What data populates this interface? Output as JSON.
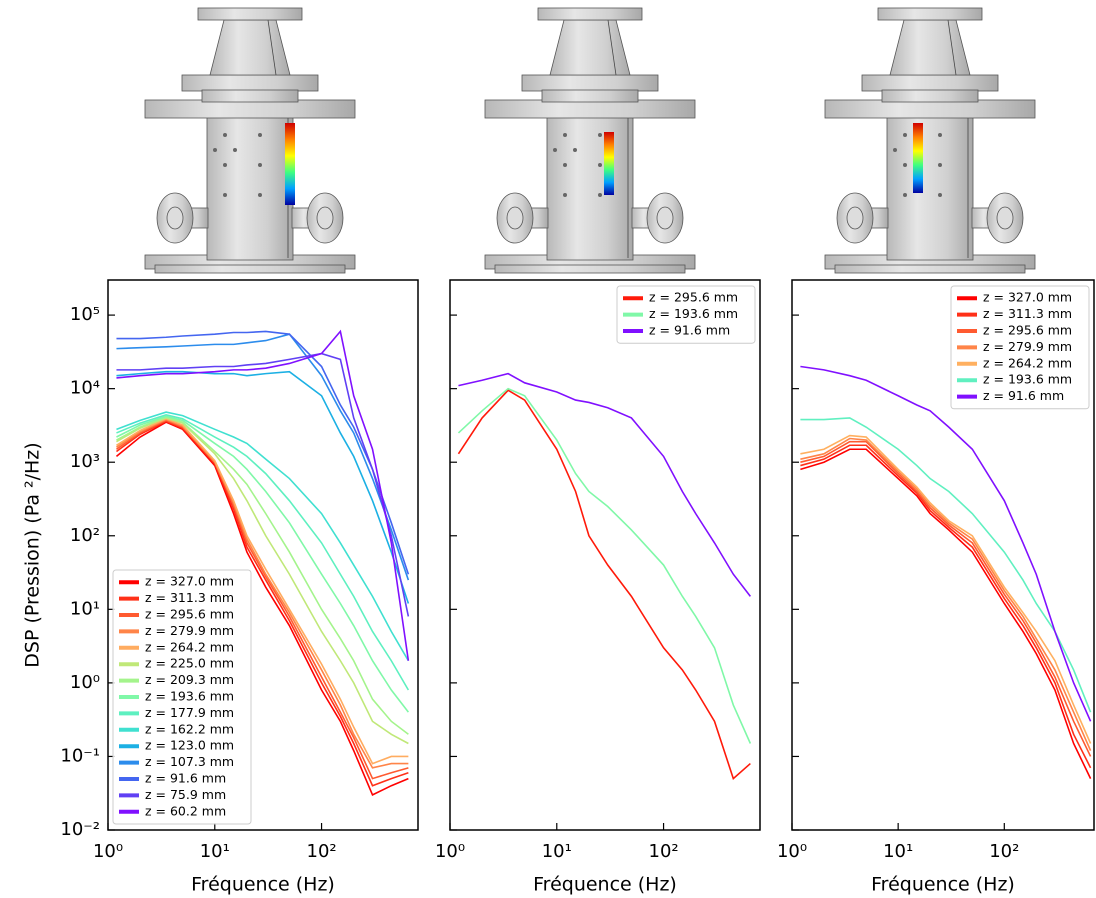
{
  "chart_data": [
    {
      "type": "line",
      "xscale": "log",
      "yscale": "log",
      "xlabel": "Fréquence (Hz)",
      "ylabel": "DSP (Pression) (Pa ²/Hz)",
      "legend": "lower left",
      "xlim": [
        1,
        800
      ],
      "ylim": [
        0.01,
        300000
      ],
      "xticks": [
        {
          "value": 1,
          "label": "10⁰"
        },
        {
          "value": 10,
          "label": "10¹"
        },
        {
          "value": 100,
          "label": "10²"
        }
      ],
      "yticks": [
        {
          "value": 0.01,
          "label": "10⁻²"
        },
        {
          "value": 0.1,
          "label": "10⁻¹"
        },
        {
          "value": 1,
          "label": "10⁰"
        },
        {
          "value": 10,
          "label": "10¹"
        },
        {
          "value": 100,
          "label": "10²"
        },
        {
          "value": 1000,
          "label": "10³"
        },
        {
          "value": 10000,
          "label": "10⁴"
        },
        {
          "value": 100000,
          "label": "10⁵"
        }
      ],
      "x": [
        1.2,
        2,
        3.5,
        5,
        10,
        15,
        20,
        30,
        50,
        100,
        150,
        200,
        300,
        450,
        650
      ],
      "series": [
        {
          "name": "z = 327.0 mm",
          "color": "#ff0000",
          "values": [
            1200,
            2200,
            3500,
            2800,
            900,
            200,
            60,
            20,
            6,
            0.8,
            0.3,
            0.12,
            0.03,
            0.04,
            0.05
          ]
        },
        {
          "name": "z = 311.3 mm",
          "color": "#ff3018",
          "values": [
            1400,
            2400,
            3600,
            2900,
            950,
            230,
            70,
            25,
            7,
            1,
            0.35,
            0.15,
            0.04,
            0.05,
            0.06
          ]
        },
        {
          "name": "z = 295.6 mm",
          "color": "#ff5a30",
          "values": [
            1500,
            2500,
            3700,
            3000,
            1000,
            260,
            80,
            28,
            8,
            1.2,
            0.4,
            0.18,
            0.05,
            0.06,
            0.07
          ]
        },
        {
          "name": "z = 279.9 mm",
          "color": "#ff8448",
          "values": [
            1600,
            2600,
            3800,
            3100,
            1000,
            280,
            90,
            30,
            9,
            1.5,
            0.5,
            0.2,
            0.07,
            0.08,
            0.08
          ]
        },
        {
          "name": "z = 264.2 mm",
          "color": "#ffac60",
          "values": [
            1700,
            2700,
            3900,
            3200,
            1050,
            300,
            100,
            35,
            10,
            1.8,
            0.6,
            0.25,
            0.08,
            0.1,
            0.1
          ]
        },
        {
          "name": "z = 225.0 mm",
          "color": "#c0e878",
          "values": [
            1900,
            2900,
            4000,
            3400,
            1300,
            600,
            300,
            100,
            30,
            5,
            2,
            1,
            0.3,
            0.2,
            0.15
          ]
        },
        {
          "name": "z = 209.3 mm",
          "color": "#a4f48c",
          "values": [
            2000,
            3000,
            4100,
            3500,
            1400,
            800,
            500,
            200,
            60,
            10,
            4,
            2,
            0.6,
            0.3,
            0.2
          ]
        },
        {
          "name": "z = 193.6 mm",
          "color": "#80f8a8",
          "values": [
            2200,
            3200,
            4200,
            3700,
            1800,
            1200,
            800,
            400,
            150,
            30,
            12,
            6,
            2,
            0.8,
            0.4
          ]
        },
        {
          "name": "z = 177.9 mm",
          "color": "#5ef0c0",
          "values": [
            2500,
            3400,
            4400,
            3900,
            2200,
            1600,
            1200,
            700,
            300,
            80,
            30,
            15,
            5,
            2,
            0.8
          ]
        },
        {
          "name": "z = 162.2 mm",
          "color": "#40e0d0",
          "values": [
            2800,
            3700,
            4800,
            4300,
            2800,
            2200,
            1800,
            1100,
            600,
            200,
            80,
            40,
            15,
            5,
            2
          ]
        },
        {
          "name": "z = 123.0 mm",
          "color": "#1cb0e4",
          "values": [
            15000,
            16000,
            17000,
            17000,
            16000,
            16000,
            15000,
            16000,
            17000,
            8000,
            2500,
            1200,
            300,
            60,
            12
          ]
        },
        {
          "name": "z = 107.3 mm",
          "color": "#2c8cec",
          "values": [
            35000,
            36000,
            37000,
            38000,
            40000,
            40000,
            42000,
            45000,
            55000,
            15000,
            5000,
            2500,
            600,
            120,
            25
          ]
        },
        {
          "name": "z = 91.6 mm",
          "color": "#4466f0",
          "values": [
            48000,
            48000,
            50000,
            52000,
            55000,
            58000,
            58000,
            60000,
            55000,
            20000,
            6000,
            3000,
            800,
            150,
            30
          ]
        },
        {
          "name": "z = 75.9 mm",
          "color": "#6040f4",
          "values": [
            18000,
            18000,
            19000,
            19000,
            20000,
            20000,
            21000,
            22000,
            25000,
            30000,
            25000,
            4000,
            800,
            100,
            8
          ]
        },
        {
          "name": "z = 60.2 mm",
          "color": "#8010ff",
          "values": [
            14000,
            15000,
            16000,
            16000,
            17000,
            18000,
            18000,
            19000,
            22000,
            30000,
            60000,
            8000,
            1500,
            80,
            2
          ]
        }
      ]
    },
    {
      "type": "line",
      "xscale": "log",
      "yscale": "log",
      "xlabel": "Fréquence (Hz)",
      "legend": "upper right",
      "xlim": [
        1,
        800
      ],
      "ylim": [
        0.01,
        300000
      ],
      "xticks": [
        {
          "value": 1,
          "label": "10⁰"
        },
        {
          "value": 10,
          "label": "10¹"
        },
        {
          "value": 100,
          "label": "10²"
        }
      ],
      "yticks": [
        0.01,
        0.1,
        1,
        10,
        100,
        1000,
        10000,
        100000
      ],
      "x": [
        1.2,
        2,
        3.5,
        5,
        10,
        15,
        20,
        30,
        50,
        100,
        150,
        200,
        300,
        450,
        650
      ],
      "series": [
        {
          "name": "z = 295.6 mm",
          "color": "#ff1a0a",
          "values": [
            1300,
            4000,
            9500,
            7000,
            1500,
            400,
            100,
            40,
            15,
            3,
            1.5,
            0.8,
            0.3,
            0.05,
            0.08
          ]
        },
        {
          "name": "z = 193.6 mm",
          "color": "#80f8a8",
          "values": [
            2500,
            5000,
            10000,
            8000,
            2000,
            700,
            400,
            250,
            120,
            40,
            15,
            8,
            3,
            0.5,
            0.15
          ]
        },
        {
          "name": "z = 91.6 mm",
          "color": "#8010ff",
          "values": [
            11000,
            13000,
            16000,
            12000,
            9000,
            7000,
            6500,
            5500,
            4000,
            1200,
            400,
            200,
            80,
            30,
            15
          ]
        }
      ]
    },
    {
      "type": "line",
      "xscale": "log",
      "yscale": "log",
      "xlabel": "Fréquence (Hz)",
      "legend": "upper right",
      "xlim": [
        1,
        700
      ],
      "ylim": [
        0.01,
        300000
      ],
      "xticks": [
        {
          "value": 1,
          "label": "10⁰"
        },
        {
          "value": 10,
          "label": "10¹"
        },
        {
          "value": 100,
          "label": "10²"
        }
      ],
      "yticks": [
        0.01,
        0.1,
        1,
        10,
        100,
        1000,
        10000,
        100000
      ],
      "x": [
        1.2,
        2,
        3.5,
        5,
        10,
        15,
        20,
        30,
        50,
        100,
        150,
        200,
        300,
        450,
        650
      ],
      "series": [
        {
          "name": "z = 327.0 mm",
          "color": "#ff0000",
          "values": [
            800,
            1000,
            1500,
            1500,
            600,
            350,
            200,
            120,
            60,
            12,
            5,
            2.5,
            0.8,
            0.15,
            0.05
          ]
        },
        {
          "name": "z = 311.3 mm",
          "color": "#ff3018",
          "values": [
            900,
            1100,
            1700,
            1700,
            650,
            380,
            220,
            130,
            70,
            14,
            6,
            3,
            1,
            0.2,
            0.07
          ]
        },
        {
          "name": "z = 295.6 mm",
          "color": "#ff5a30",
          "values": [
            1000,
            1200,
            1900,
            1900,
            700,
            400,
            240,
            140,
            80,
            16,
            7,
            3.5,
            1.2,
            0.3,
            0.1
          ]
        },
        {
          "name": "z = 279.9 mm",
          "color": "#ff8448",
          "values": [
            1100,
            1300,
            2100,
            2000,
            750,
            430,
            260,
            150,
            90,
            18,
            8,
            4,
            1.5,
            0.4,
            0.12
          ]
        },
        {
          "name": "z = 264.2 mm",
          "color": "#ffb060",
          "values": [
            1300,
            1500,
            2300,
            2200,
            800,
            460,
            280,
            160,
            100,
            20,
            9,
            5,
            2,
            0.5,
            0.15
          ]
        },
        {
          "name": "z = 193.6 mm",
          "color": "#60f0c0",
          "values": [
            3800,
            3800,
            4000,
            3000,
            1500,
            900,
            600,
            400,
            200,
            60,
            25,
            12,
            5,
            1.5,
            0.4
          ]
        },
        {
          "name": "z = 91.6 mm",
          "color": "#8010ff",
          "values": [
            20000,
            18000,
            15000,
            13000,
            8000,
            6000,
            5000,
            3000,
            1500,
            300,
            80,
            30,
            5,
            1,
            0.3
          ]
        }
      ]
    }
  ]
}
